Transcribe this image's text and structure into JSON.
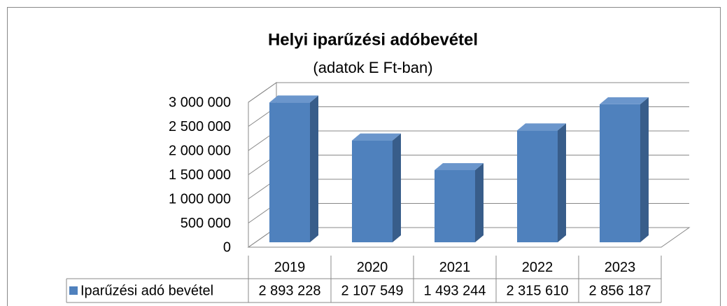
{
  "chart_data": {
    "type": "bar3d",
    "title": "Helyi iparűzési adóbevétel",
    "subtitle": "(adatok E Ft-ban)",
    "categories": [
      "2019",
      "2020",
      "2021",
      "2022",
      "2023"
    ],
    "series": [
      {
        "name": "Iparűzési adó bevétel",
        "color": "#4f81bd",
        "values": [
          2893228,
          2107549,
          1493244,
          2315610,
          2856187
        ],
        "value_labels": [
          "2 893 228",
          "2 107 549",
          "1 493 244",
          "2 315 610",
          "2 856 187"
        ]
      }
    ],
    "ylim": [
      0,
      3000000
    ],
    "yticks": [
      0,
      {
        "value": 500000,
        "label": "500 000"
      },
      {
        "value": 1000000,
        "label": "1 000 000"
      },
      {
        "value": 1500000,
        "label": "1 500 000"
      },
      {
        "value": 2000000,
        "label": "2 000 000"
      },
      {
        "value": 2500000,
        "label": "2 500 000"
      },
      {
        "value": 3000000,
        "label": "3 000 000"
      }
    ],
    "grid": true,
    "data_table": true
  }
}
